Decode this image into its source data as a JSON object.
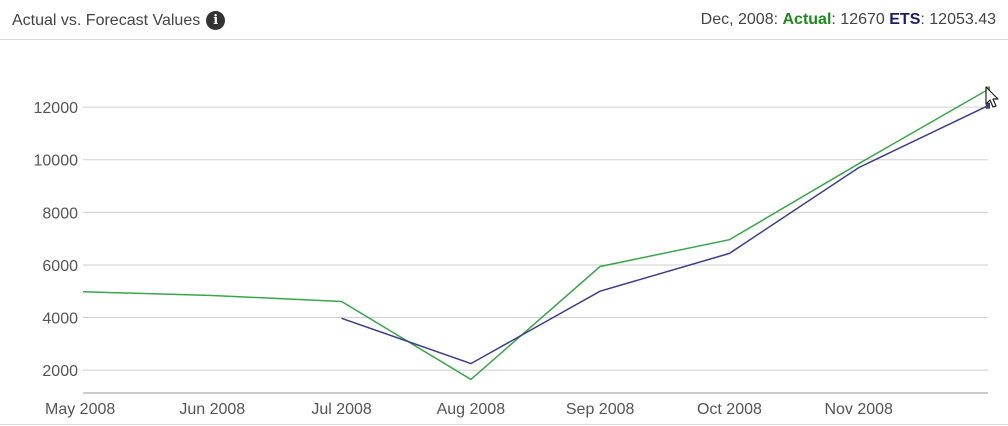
{
  "header": {
    "title": "Actual vs. Forecast Values",
    "readout": {
      "period": "Dec, 2008:",
      "actual_label": "Actual",
      "actual_value": ": 12670",
      "ets_label": "ETS",
      "ets_value": ": 12053.43"
    }
  },
  "icons": {
    "info": "info-icon",
    "cursor": "mouse-pointer-icon"
  },
  "chart_data": {
    "type": "line",
    "x": [
      "May 2008",
      "Jun 2008",
      "Jul 2008",
      "Aug 2008",
      "Sep 2008",
      "Oct 2008",
      "Nov 2008",
      "Dec 2008"
    ],
    "x_tick_labels": [
      "May 2008",
      "Jun 2008",
      "Jul 2008",
      "Aug 2008",
      "Sep 2008",
      "Oct 2008",
      "Nov 2008"
    ],
    "series": [
      {
        "name": "Actual",
        "color": "#3aa64a",
        "values": [
          4980,
          4840,
          4610,
          1650,
          5940,
          6960,
          9850,
          12670
        ]
      },
      {
        "name": "ETS",
        "color": "#3c3c8c",
        "values": [
          null,
          null,
          3970,
          2250,
          5000,
          6440,
          9700,
          12053.43
        ]
      }
    ],
    "y_ticks": [
      2000,
      4000,
      6000,
      8000,
      10000,
      12000
    ],
    "ylim": [
      600,
      13600
    ],
    "grid": true,
    "legend": "none"
  }
}
